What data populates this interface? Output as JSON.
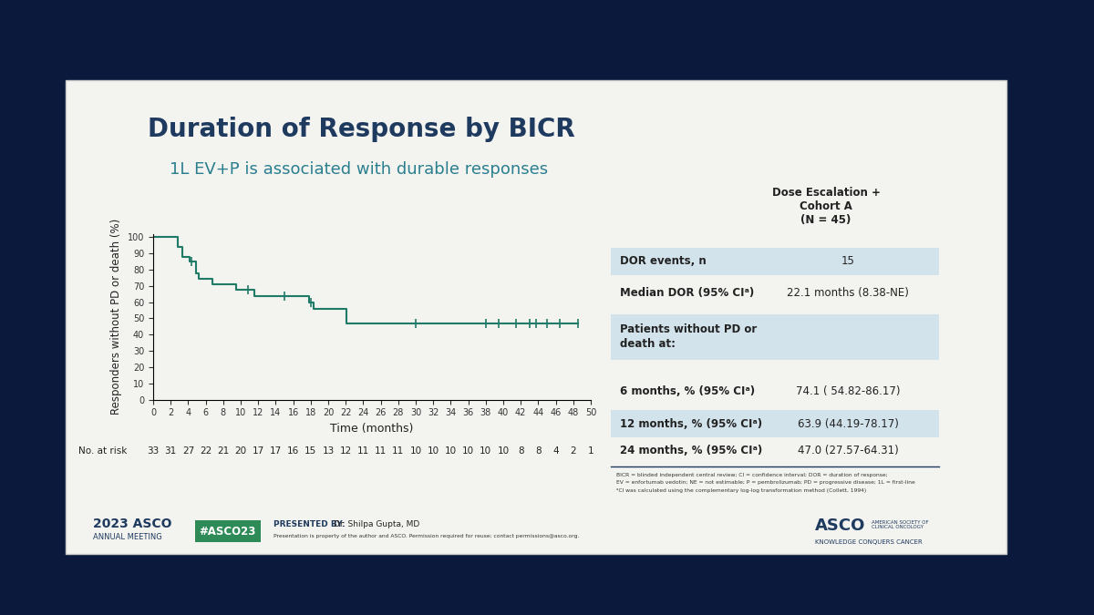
{
  "slide": {
    "title": "Duration of Response by BICR",
    "subtitle": "1L EV+P is associated with durable responses"
  },
  "chart_data": {
    "type": "step",
    "xlabel": "Time (months)",
    "ylabel": "Responders without PD or death (%)",
    "x": [
      0,
      2.8,
      3.3,
      4.2,
      4.9,
      5.2,
      6.8,
      9.5,
      11.6,
      17.8,
      18.3,
      22.1,
      48.5
    ],
    "values": [
      100,
      93.9,
      87.8,
      84.7,
      77.6,
      74.1,
      70.9,
      67.7,
      63.9,
      60.0,
      56.0,
      47.0,
      47.0
    ],
    "censor_x": [
      4.4,
      10.8,
      15.0,
      18.0,
      30.0,
      38.0,
      39.5,
      41.5,
      43.0,
      43.7,
      45.0,
      46.5,
      48.5
    ],
    "color": "#1f7a66",
    "marker": "|",
    "xlim": [
      0,
      50
    ],
    "ylim": [
      0,
      102
    ],
    "xticks": [
      0,
      2,
      4,
      6,
      8,
      10,
      12,
      14,
      16,
      18,
      20,
      22,
      24,
      26,
      28,
      30,
      32,
      34,
      36,
      38,
      40,
      42,
      44,
      46,
      48,
      50
    ],
    "yticks": [
      0,
      10,
      20,
      30,
      40,
      50,
      60,
      70,
      80,
      90,
      100
    ],
    "grid": false,
    "at_risk_label": "No. at risk",
    "at_risk": [
      33,
      31,
      27,
      22,
      21,
      20,
      17,
      17,
      16,
      15,
      13,
      12,
      11,
      11,
      11,
      10,
      10,
      10,
      10,
      10,
      10,
      8,
      8,
      4,
      2,
      1
    ]
  },
  "table": {
    "header": "Dose Escalation +\nCohort A\n(N = 45)",
    "rows": [
      {
        "label": "DOR events, n",
        "value": "15",
        "shaded": true
      },
      {
        "label": "Median DOR (95% CIᵃ)",
        "value": "22.1 months (8.38-NE)",
        "shaded": false
      },
      {
        "label": "Patients without PD or\ndeath at:",
        "value": "",
        "shaded": true
      },
      {
        "label": "6 months, % (95% CIᵃ)",
        "value": "74.1 ( 54.82-86.17)",
        "shaded": false
      },
      {
        "label": "12 months, % (95% CIᵃ)",
        "value": "63.9 (44.19-78.17)",
        "shaded": true
      },
      {
        "label": "24 months, % (95% CIᵃ)",
        "value": "47.0 (27.57-64.31)",
        "shaded": false
      }
    ],
    "footnotes": [
      "BICR = blinded independent central review; CI = confidence interval; DOR = duration of response;",
      "EV = enfortumab vedotin; NE = not estimable; P = pembrolizumab; PD = progressive disease; 1L = first-line",
      "ᵃCI was calculated using the complementary log-log transformation method (Collett, 1994)"
    ]
  },
  "footer": {
    "meeting": "2023 ASCO",
    "meeting_sub": "ANNUAL MEETING",
    "hashtag": "#ASCO23",
    "presenter_label": "PRESENTED BY:",
    "presenter": "Dr. Shilpa Gupta, MD",
    "permission": "Presentation is property of the author and ASCO. Permission required for reuse; contact permissions@asco.org.",
    "logo": "ASCO",
    "logo_sub": "AMERICAN SOCIETY OF\nCLINICAL ONCOLOGY",
    "logo_tagline": "KNOWLEDGE CONQUERS CANCER"
  }
}
